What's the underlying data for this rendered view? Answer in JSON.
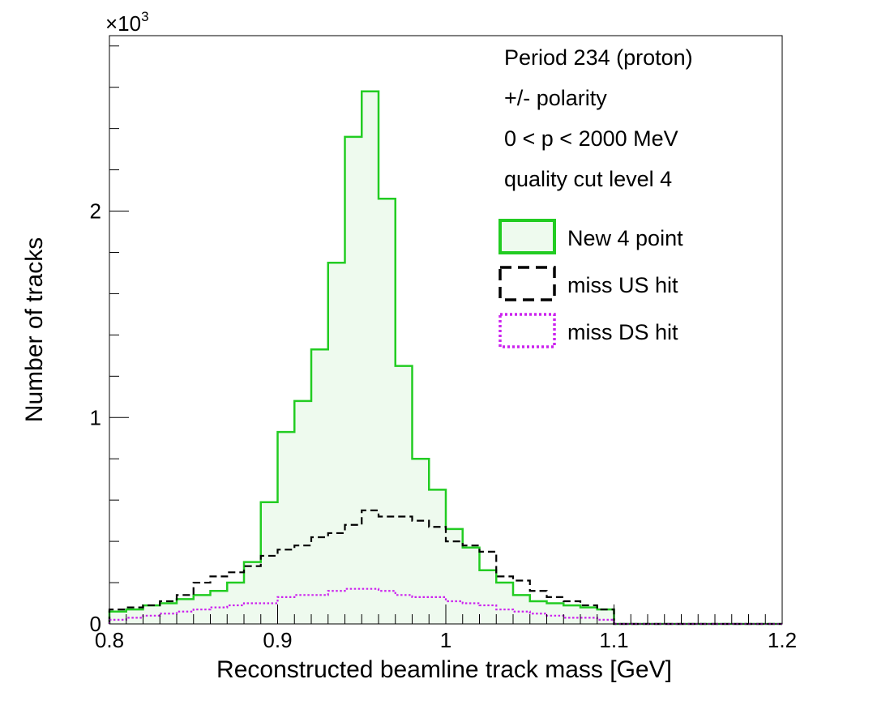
{
  "chart_data": {
    "type": "step-histogram",
    "title": "",
    "xlabel": "Reconstructed beamline track mass [GeV]",
    "ylabel": "Number of tracks",
    "y_multiplier_label": "×10",
    "y_multiplier_exp": "3",
    "xlim": [
      0.8,
      1.2
    ],
    "ylim": [
      0,
      2.85
    ],
    "bin_width": 0.01,
    "x_ticks": [
      {
        "value": 0.8,
        "label": "0.8"
      },
      {
        "value": 0.9,
        "label": "0.9"
      },
      {
        "value": 1.0,
        "label": "1"
      },
      {
        "value": 1.1,
        "label": "1.1"
      },
      {
        "value": 1.2,
        "label": "1.2"
      }
    ],
    "y_ticks": [
      {
        "value": 0,
        "label": "0"
      },
      {
        "value": 1,
        "label": "1"
      },
      {
        "value": 2,
        "label": "2"
      }
    ],
    "bin_edges_start": [
      0.8,
      0.81,
      0.82,
      0.83,
      0.84,
      0.85,
      0.86,
      0.87,
      0.88,
      0.89,
      0.9,
      0.91,
      0.92,
      0.93,
      0.94,
      0.95,
      0.96,
      0.97,
      0.98,
      0.99,
      1.0,
      1.01,
      1.02,
      1.03,
      1.04,
      1.05,
      1.06,
      1.07,
      1.08,
      1.09,
      1.1,
      1.11,
      1.12,
      1.13,
      1.14,
      1.15,
      1.16,
      1.17,
      1.18,
      1.19
    ],
    "series": [
      {
        "name": "New 4 point",
        "style": "solid-filled",
        "color": "#22cc22",
        "fill": "#eefaee",
        "values": [
          0.06,
          0.07,
          0.09,
          0.1,
          0.12,
          0.14,
          0.16,
          0.2,
          0.3,
          0.59,
          0.93,
          1.08,
          1.33,
          1.75,
          2.36,
          2.58,
          2.06,
          1.25,
          0.8,
          0.65,
          0.46,
          0.37,
          0.26,
          0.2,
          0.14,
          0.11,
          0.1,
          0.09,
          0.08,
          0.07,
          0.0,
          0.0,
          0.0,
          0.0,
          0.0,
          0.0,
          0.0,
          0.0,
          0.0,
          0.0
        ]
      },
      {
        "name": "miss US hit",
        "style": "dashed",
        "color": "#000000",
        "values": [
          0.07,
          0.08,
          0.09,
          0.11,
          0.14,
          0.2,
          0.23,
          0.25,
          0.28,
          0.33,
          0.36,
          0.38,
          0.42,
          0.44,
          0.48,
          0.55,
          0.52,
          0.52,
          0.5,
          0.47,
          0.4,
          0.38,
          0.35,
          0.23,
          0.21,
          0.16,
          0.13,
          0.11,
          0.09,
          0.07,
          0.0,
          0.0,
          0.0,
          0.0,
          0.0,
          0.0,
          0.0,
          0.0,
          0.0,
          0.0
        ]
      },
      {
        "name": "miss DS hit",
        "style": "dotted",
        "color": "#cc22ee",
        "values": [
          0.02,
          0.03,
          0.04,
          0.05,
          0.06,
          0.07,
          0.08,
          0.09,
          0.1,
          0.1,
          0.13,
          0.14,
          0.14,
          0.16,
          0.17,
          0.17,
          0.16,
          0.14,
          0.13,
          0.13,
          0.11,
          0.1,
          0.09,
          0.07,
          0.06,
          0.05,
          0.04,
          0.03,
          0.03,
          0.02,
          0.0,
          0.0,
          0.0,
          0.0,
          0.0,
          0.0,
          0.0,
          0.0,
          0.0,
          0.0
        ]
      }
    ],
    "annotations": [
      "Period 234 (proton)",
      "+/- polarity",
      "0 < p < 2000 MeV",
      "quality cut level 4"
    ],
    "legend_position": "top-right",
    "grid": false
  }
}
